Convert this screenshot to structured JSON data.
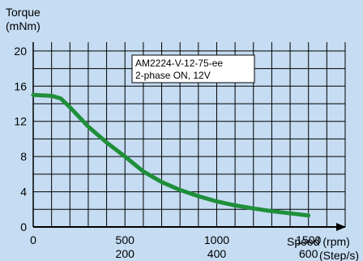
{
  "chart_data": {
    "type": "line",
    "ylabel_line1": "Torque",
    "ylabel_line2": "(mNm)",
    "xlabel_line1": "Speed  (rpm)",
    "xlabel_line2": "(Step/s)",
    "xlim": [
      0,
      1700
    ],
    "ylim": [
      0,
      21
    ],
    "grid": true,
    "x_ticks_rpm": [
      {
        "value": 0,
        "label": "0"
      },
      {
        "value": 500,
        "label": "500"
      },
      {
        "value": 1000,
        "label": "1000"
      },
      {
        "value": 1500,
        "label": "1500"
      }
    ],
    "x_ticks_steps": [
      {
        "value": 500,
        "label": "200"
      },
      {
        "value": 1000,
        "label": "400"
      },
      {
        "value": 1500,
        "label": "600"
      }
    ],
    "y_ticks": [
      {
        "value": 0,
        "label": "0"
      },
      {
        "value": 4,
        "label": "4"
      },
      {
        "value": 8,
        "label": "8"
      },
      {
        "value": 12,
        "label": "12"
      },
      {
        "value": 16,
        "label": "16"
      },
      {
        "value": 20,
        "label": "20"
      }
    ],
    "annotation": {
      "line1": "AM2224-V-12-75-ee",
      "line2": "2-phase ON, 12V"
    },
    "series": [
      {
        "color": "#1f8f3a",
        "x": [
          0,
          100,
          150,
          200,
          300,
          400,
          500,
          600,
          700,
          800,
          900,
          1000,
          1100,
          1200,
          1300,
          1400,
          1500
        ],
        "y": [
          15.0,
          14.9,
          14.6,
          13.6,
          11.4,
          9.6,
          8.0,
          6.3,
          5.1,
          4.2,
          3.5,
          2.9,
          2.45,
          2.1,
          1.8,
          1.55,
          1.3
        ]
      }
    ]
  }
}
